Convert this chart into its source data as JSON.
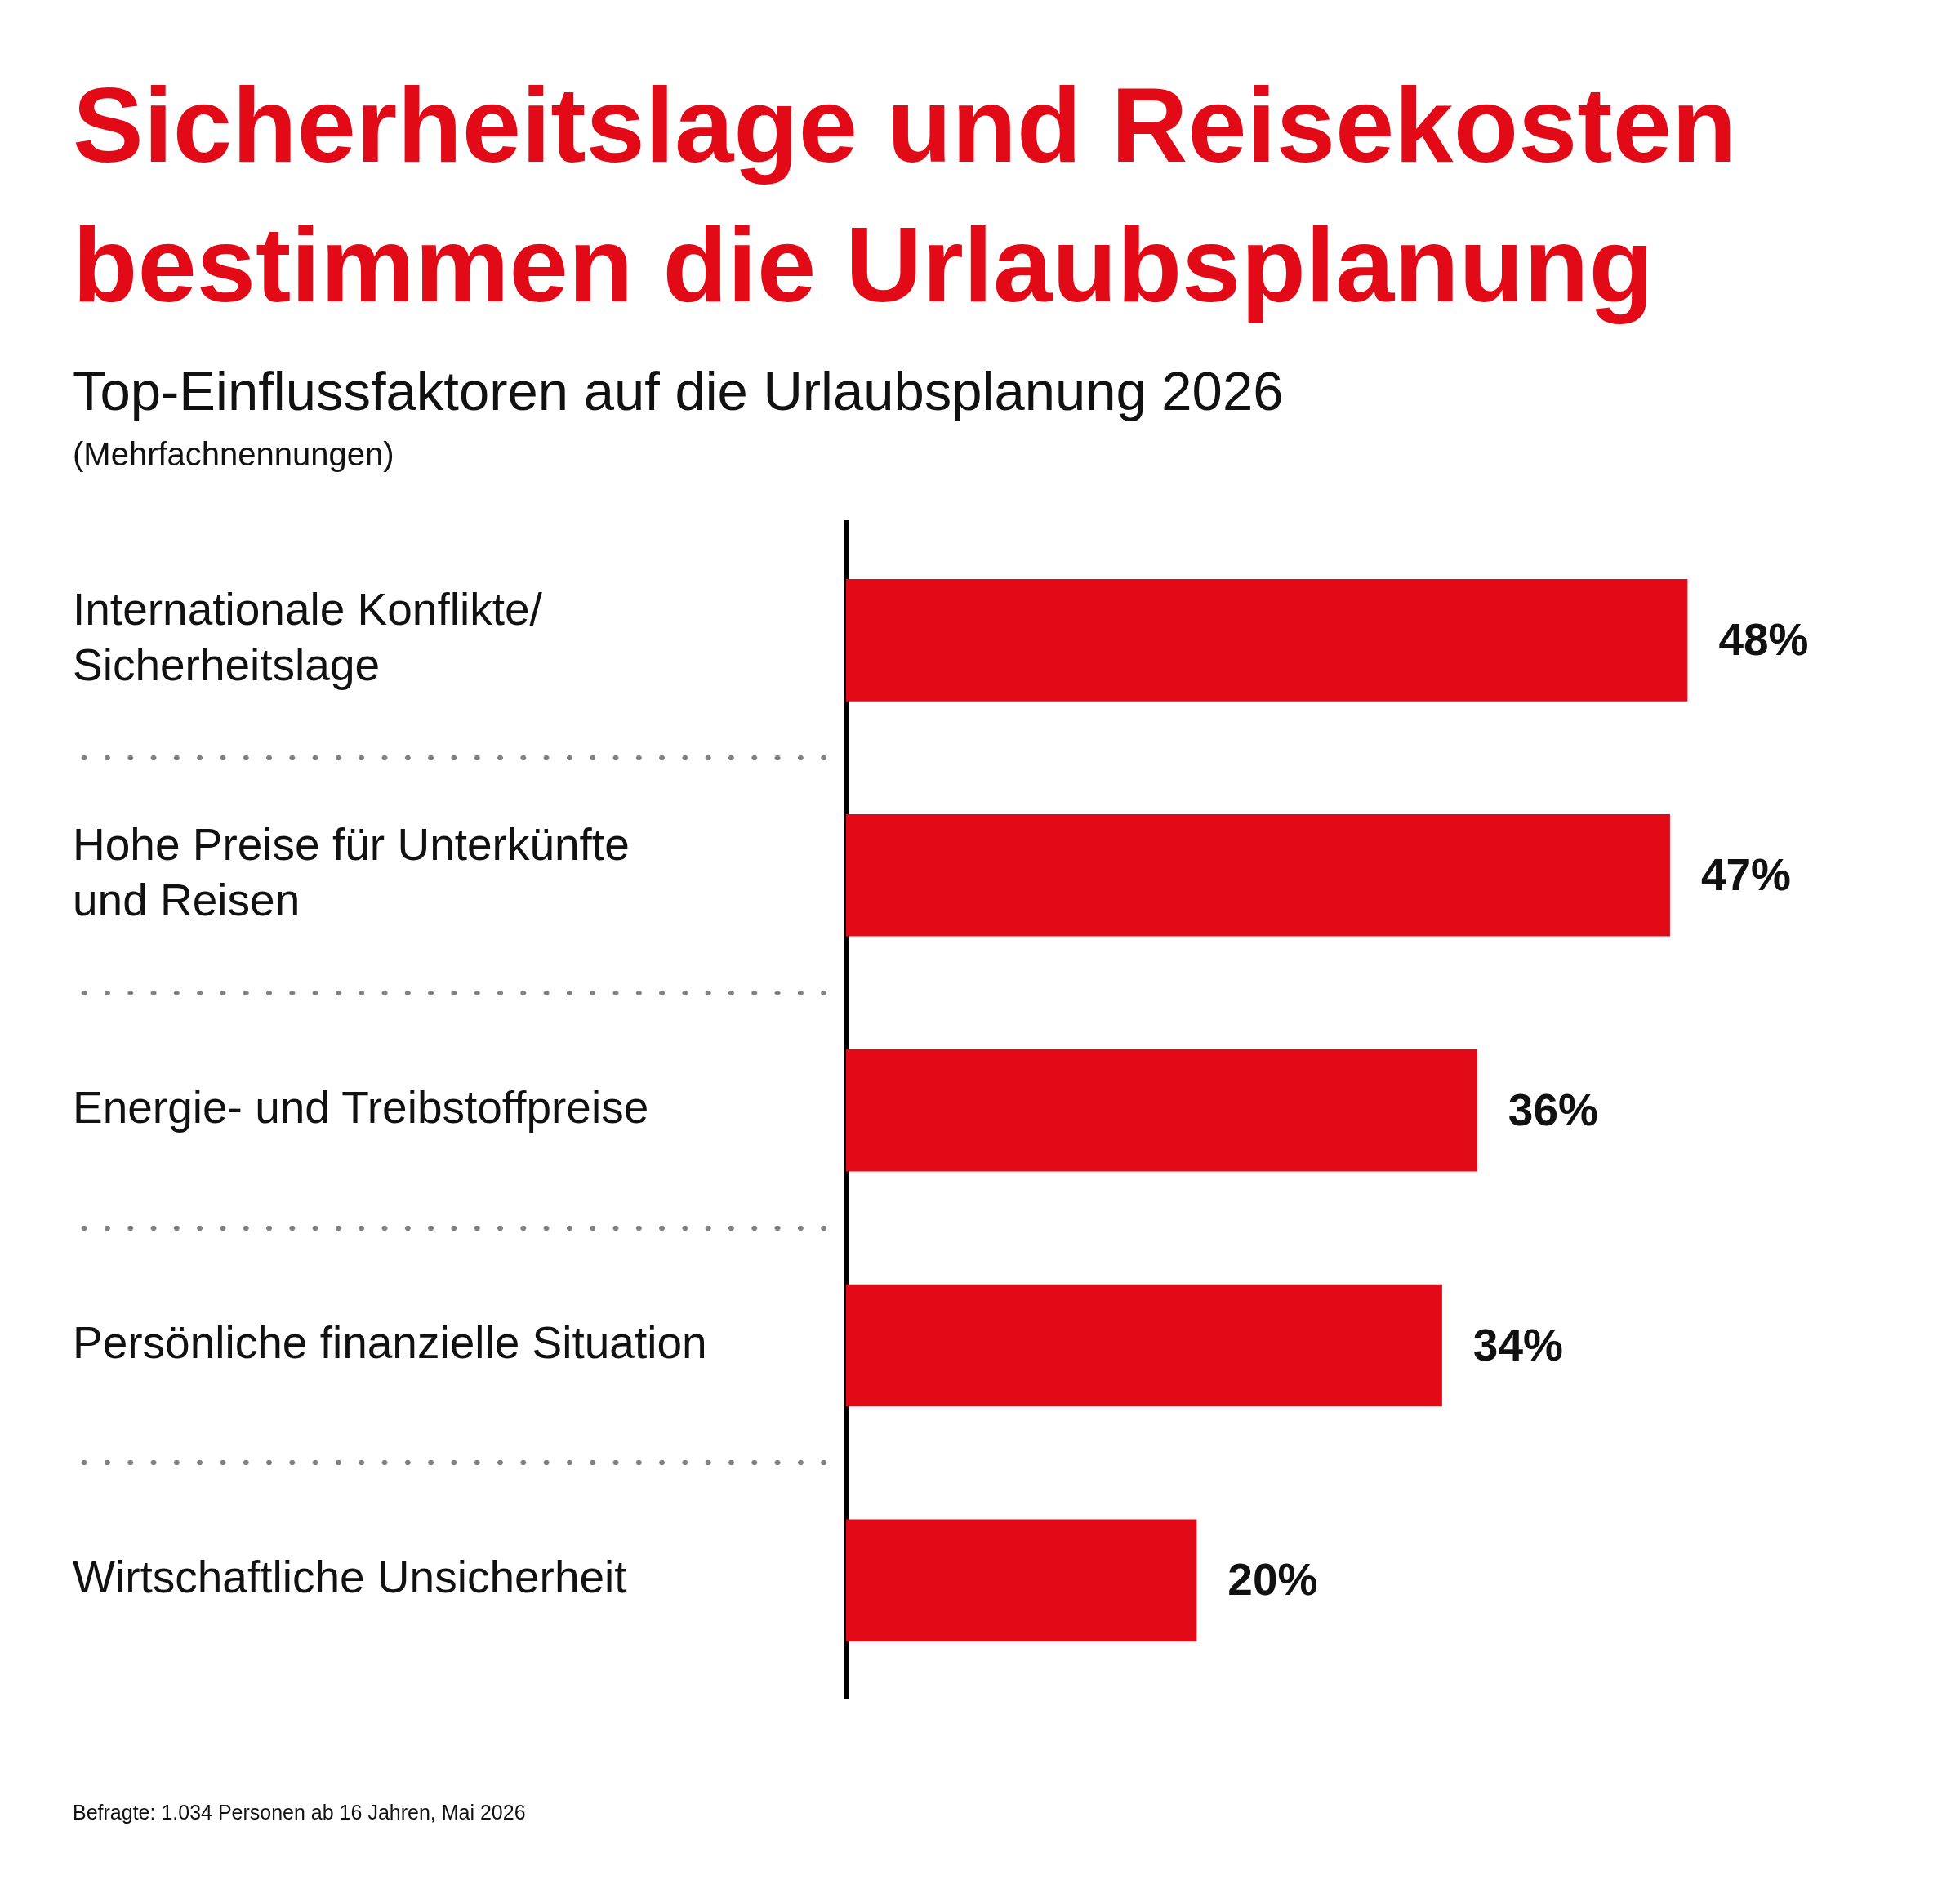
{
  "chart_data": {
    "type": "bar",
    "orientation": "horizontal",
    "title": "Sicherheitslage und Reisekosten bestimmen die Urlaubsplanung",
    "subtitle": "Top-Einflussfaktoren auf die Urlaubsplanung 2026",
    "annotations": [
      "(Mehrfachnennungen)",
      "Befragte: 1.034 Personen ab 16 Jahren, Mai 2026"
    ],
    "categories": [
      "Internationale Konflikte/\nSicherheitslage",
      "Hohe Preise für Unterkünfte\nund Reisen",
      "Energie- und Treibstoffpreise",
      "Persönliche finanzielle Situation",
      "Wirtschaftliche Unsicherheit"
    ],
    "values": [
      48,
      47,
      36,
      34,
      20
    ],
    "value_labels": [
      "48%",
      "47%",
      "36%",
      "34%",
      "20%"
    ],
    "color": "#e30a17",
    "tick_labels": "y"
  }
}
